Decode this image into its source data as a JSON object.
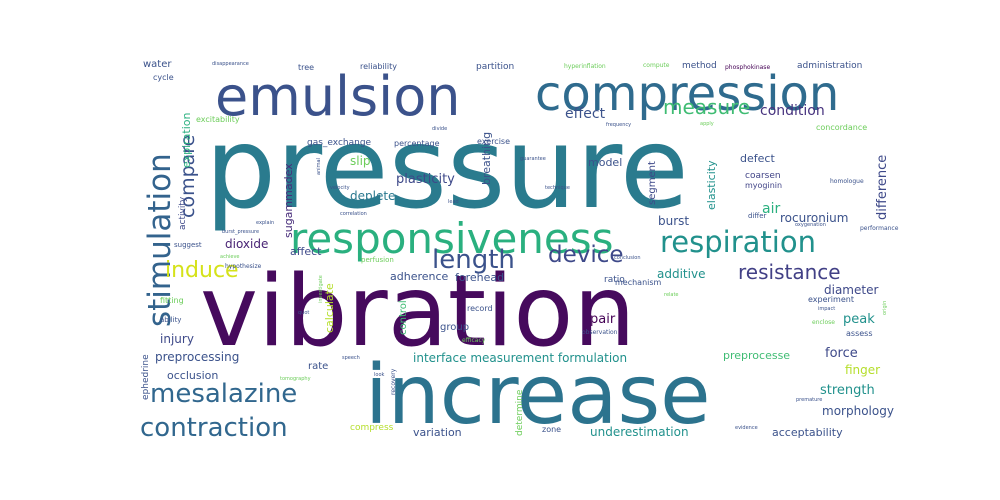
{
  "word_cloud": {
    "words": [
      {
        "text": "pressure",
        "color": "#2a7b8e"
      },
      {
        "text": "vibration",
        "color": "#460a5d"
      },
      {
        "text": "increase",
        "color": "#2c738e"
      },
      {
        "text": "emulsion",
        "color": "#3b528b"
      },
      {
        "text": "compression",
        "color": "#2f6b8e"
      },
      {
        "text": "responsiveness",
        "color": "#2ab07f"
      },
      {
        "text": "stimulation",
        "color": "#33638d"
      },
      {
        "text": "respiration",
        "color": "#21918c"
      },
      {
        "text": "length",
        "color": "#3b528b"
      },
      {
        "text": "device",
        "color": "#3e4989"
      },
      {
        "text": "induce",
        "color": "#d5e21a"
      },
      {
        "text": "resistance",
        "color": "#424086"
      },
      {
        "text": "mesalazine",
        "color": "#31678e"
      },
      {
        "text": "contraction",
        "color": "#31678e"
      },
      {
        "text": "compare",
        "color": "#3b528b"
      },
      {
        "text": "measure",
        "color": "#3fbc73"
      },
      {
        "text": "condition",
        "color": "#46327e"
      },
      {
        "text": "difference",
        "color": "#3e4989"
      },
      {
        "text": "effect",
        "color": "#3b528b"
      },
      {
        "text": "expiration",
        "color": "#2ab07f"
      },
      {
        "text": "activity",
        "color": "#3e4989"
      },
      {
        "text": "sugammadex",
        "color": "#472c7a"
      },
      {
        "text": "plasticity",
        "color": "#3e4989"
      },
      {
        "text": "deplete",
        "color": "#2a788e"
      },
      {
        "text": "slip",
        "color": "#6ccd5a"
      },
      {
        "text": "breathing",
        "color": "#3b528b"
      },
      {
        "text": "model",
        "color": "#3b528b"
      },
      {
        "text": "segment",
        "color": "#3e4989"
      },
      {
        "text": "elasticity",
        "color": "#21918c"
      },
      {
        "text": "defect",
        "color": "#3b528b"
      },
      {
        "text": "coarsen",
        "color": "#414487"
      },
      {
        "text": "myoginin",
        "color": "#414487"
      },
      {
        "text": "burst",
        "color": "#3b528b"
      },
      {
        "text": "air",
        "color": "#2ab07f"
      },
      {
        "text": "rocuronium",
        "color": "#3b528b"
      },
      {
        "text": "dioxide",
        "color": "#482374"
      },
      {
        "text": "affect",
        "color": "#3e4989"
      },
      {
        "text": "additive",
        "color": "#21918c"
      },
      {
        "text": "adherence",
        "color": "#3b528b"
      },
      {
        "text": "forehead",
        "color": "#3b528b"
      },
      {
        "text": "ratio",
        "color": "#3b528b"
      },
      {
        "text": "mechanism",
        "color": "#3b528b"
      },
      {
        "text": "diameter",
        "color": "#3e4989"
      },
      {
        "text": "experiment",
        "color": "#3b528b"
      },
      {
        "text": "peak",
        "color": "#21918c"
      },
      {
        "text": "injury",
        "color": "#3e4989"
      },
      {
        "text": "group",
        "color": "#3b528b"
      },
      {
        "text": "pair",
        "color": "#440154"
      },
      {
        "text": "calculate",
        "color": "#b5de2b"
      },
      {
        "text": "control",
        "color": "#3fbc73"
      },
      {
        "text": "preprocessing",
        "color": "#3b528b"
      },
      {
        "text": "rate",
        "color": "#3b528b"
      },
      {
        "text": "interface measurement formulation",
        "color": "#21918c"
      },
      {
        "text": "preprocesse",
        "color": "#3fbc73"
      },
      {
        "text": "force",
        "color": "#3e4989"
      },
      {
        "text": "finger",
        "color": "#b5de2b"
      },
      {
        "text": "strength",
        "color": "#21918c"
      },
      {
        "text": "occlusion",
        "color": "#3b528b"
      },
      {
        "text": "morphology",
        "color": "#3b528b"
      },
      {
        "text": "variation",
        "color": "#3b528b"
      },
      {
        "text": "determine",
        "color": "#6ccd5a"
      },
      {
        "text": "zone",
        "color": "#3b528b"
      },
      {
        "text": "underestimation",
        "color": "#21918c"
      },
      {
        "text": "acceptability",
        "color": "#3b528b"
      },
      {
        "text": "compress",
        "color": "#b5de2b"
      },
      {
        "text": "ephedrine",
        "color": "#3b528b"
      },
      {
        "text": "water",
        "color": "#3b528b"
      },
      {
        "text": "cycle",
        "color": "#3b528b"
      },
      {
        "text": "tree",
        "color": "#3b528b"
      },
      {
        "text": "reliability",
        "color": "#3b528b"
      },
      {
        "text": "partition",
        "color": "#3b528b"
      },
      {
        "text": "method",
        "color": "#3b528b"
      },
      {
        "text": "administration",
        "color": "#3b528b"
      },
      {
        "text": "exercise",
        "color": "#3b528b"
      },
      {
        "text": "excitability",
        "color": "#6ccd5a"
      },
      {
        "text": "gas_exchange",
        "color": "#3b528b"
      },
      {
        "text": "percentage",
        "color": "#3b528b"
      },
      {
        "text": "hyperinflation",
        "color": "#6ccd5a"
      },
      {
        "text": "compute",
        "color": "#6ccd5a"
      },
      {
        "text": "phosphokinase",
        "color": "#440154"
      },
      {
        "text": "concordance",
        "color": "#6ccd5a"
      },
      {
        "text": "fitting",
        "color": "#6ccd5a"
      },
      {
        "text": "ability",
        "color": "#3b528b"
      },
      {
        "text": "suggest",
        "color": "#3b528b"
      },
      {
        "text": "hypothesize",
        "color": "#3b528b"
      },
      {
        "text": "perfusion",
        "color": "#6ccd5a"
      },
      {
        "text": "burst_pressure",
        "color": "#3b528b"
      },
      {
        "text": "explain",
        "color": "#3b528b"
      },
      {
        "text": "correlation",
        "color": "#3b528b"
      },
      {
        "text": "velocity",
        "color": "#3b528b"
      },
      {
        "text": "technique",
        "color": "#3b528b"
      },
      {
        "text": "guarantee",
        "color": "#3b528b"
      },
      {
        "text": "frequency",
        "color": "#3b528b"
      },
      {
        "text": "record",
        "color": "#3b528b"
      },
      {
        "text": "efficacy",
        "color": "#6ccd5a"
      },
      {
        "text": "observation",
        "color": "#3b528b"
      },
      {
        "text": "speech",
        "color": "#3b528b"
      },
      {
        "text": "recovery",
        "color": "#3b528b"
      },
      {
        "text": "look",
        "color": "#3b528b"
      },
      {
        "text": "evidence",
        "color": "#3b528b"
      },
      {
        "text": "homologue",
        "color": "#3b528b"
      },
      {
        "text": "differ",
        "color": "#3b528b"
      },
      {
        "text": "oxygenation",
        "color": "#3b528b"
      },
      {
        "text": "performance",
        "color": "#3b528b"
      },
      {
        "text": "impact",
        "color": "#3b528b"
      },
      {
        "text": "enclose",
        "color": "#6ccd5a"
      },
      {
        "text": "premature",
        "color": "#3b528b"
      },
      {
        "text": "assess",
        "color": "#3b528b"
      },
      {
        "text": "investigate",
        "color": "#6ccd5a"
      },
      {
        "text": "disappearance",
        "color": "#3b528b"
      },
      {
        "text": "conclusion",
        "color": "#3b528b"
      },
      {
        "text": "tomography",
        "color": "#6ccd5a"
      },
      {
        "text": "achieve",
        "color": "#6ccd5a"
      },
      {
        "text": "quot",
        "color": "#3b528b"
      },
      {
        "text": "lead",
        "color": "#3b528b"
      },
      {
        "text": "divide",
        "color": "#3b528b"
      },
      {
        "text": "animal",
        "color": "#3b528b"
      },
      {
        "text": "apply",
        "color": "#6ccd5a"
      },
      {
        "text": "relate",
        "color": "#6ccd5a"
      },
      {
        "text": "origin",
        "color": "#6ccd5a"
      }
    ]
  }
}
